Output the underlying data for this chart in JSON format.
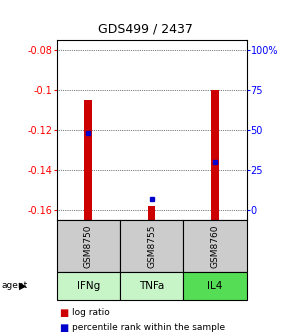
{
  "title": "GDS499 / 2437",
  "ylim": [
    -0.165,
    -0.075
  ],
  "y_left_ticks": [
    -0.08,
    -0.1,
    -0.12,
    -0.14,
    -0.16
  ],
  "y_right_ticks": [
    "100%",
    "75",
    "50",
    "25",
    "0"
  ],
  "samples": [
    "GSM8750",
    "GSM8755",
    "GSM8760"
  ],
  "agents": [
    "IFNg",
    "TNFa",
    "IL4"
  ],
  "agent_colors": [
    "#c8f5c8",
    "#c8f5c8",
    "#55dd55"
  ],
  "log_ratios": [
    -0.105,
    -0.158,
    -0.1
  ],
  "log_ratio_base": -0.165,
  "percentile_ranks_pct": [
    48,
    7,
    30
  ],
  "bar_color": "#cc0000",
  "dot_color": "#0000cc",
  "sample_bg": "#cccccc",
  "title_fontsize": 9,
  "tick_fontsize": 7,
  "legend_red": "#cc0000",
  "legend_blue": "#0000cc",
  "legend_black": "#000000"
}
